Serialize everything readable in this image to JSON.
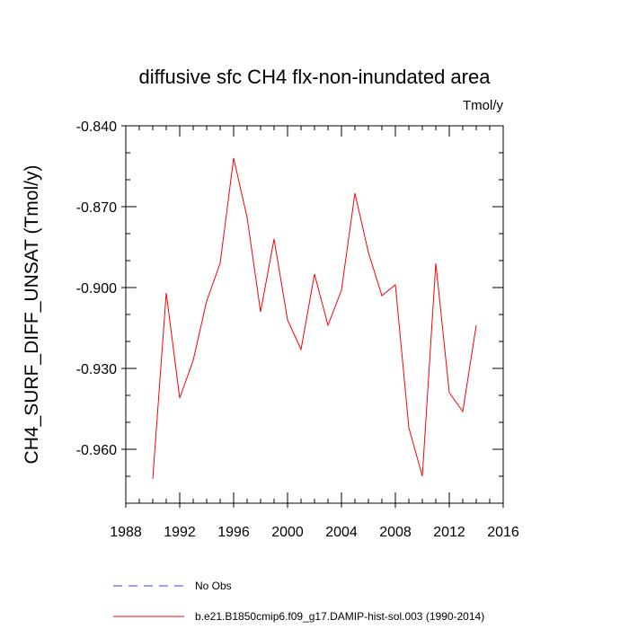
{
  "chart_data": {
    "type": "line",
    "title": "diffusive sfc CH4 flx-non-inundated area",
    "units": "Tmol/y",
    "ylabel": "CH4_SURF_DIFF_UNSAT  (Tmol/y)",
    "xlabel": "",
    "xlim": [
      1988,
      2016
    ],
    "ylim": [
      -0.98,
      -0.84
    ],
    "xticks": [
      "1988",
      "1992",
      "1996",
      "2000",
      "2004",
      "2008",
      "2012",
      "2016"
    ],
    "yticks": [
      "-0.840",
      "-0.870",
      "-0.900",
      "-0.930",
      "-0.960"
    ],
    "grid": false,
    "legend_position": "bottom",
    "series": [
      {
        "name": "No Obs",
        "color": "#4040ff",
        "dashed": true,
        "x": [],
        "values": []
      },
      {
        "name": "b.e21.B1850cmip6.f09_g17.DAMIP-hist-sol.003 (1990-2014)",
        "color": "#ff0000",
        "dashed": false,
        "x": [
          1990,
          1991,
          1992,
          1993,
          1994,
          1995,
          1996,
          1997,
          1998,
          1999,
          2000,
          2001,
          2002,
          2003,
          2004,
          2005,
          2006,
          2007,
          2008,
          2009,
          2010,
          2011,
          2012,
          2013,
          2014
        ],
        "values": [
          -0.971,
          -0.902,
          -0.941,
          -0.927,
          -0.905,
          -0.891,
          -0.852,
          -0.874,
          -0.909,
          -0.882,
          -0.912,
          -0.923,
          -0.895,
          -0.914,
          -0.901,
          -0.865,
          -0.887,
          -0.903,
          -0.899,
          -0.952,
          -0.97,
          -0.891,
          -0.939,
          -0.946,
          -0.914
        ]
      }
    ]
  }
}
